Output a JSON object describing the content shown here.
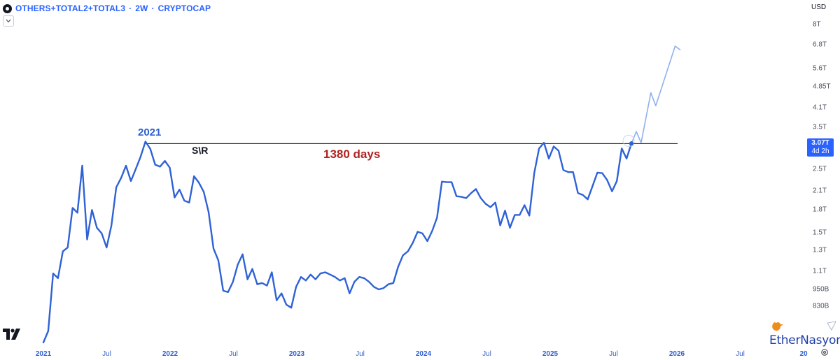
{
  "header": {
    "symbol": "OTHERS+TOTAL2+TOTAL3",
    "separator": "·",
    "interval": "2W",
    "source": "CRYPTOCAP"
  },
  "currency": "USD",
  "price_badge": {
    "price": "3.07T",
    "countdown": "4d 2h"
  },
  "annotations": {
    "peak_label": "2021",
    "sr_label": "S\\R",
    "duration_label": "1380 days"
  },
  "watermark": {
    "text": "EtherNasyonaL"
  },
  "icons": {
    "header": "logo-dot-icon",
    "collapse": "chevron-down-icon",
    "settings": "gear-icon",
    "brand": "tradingview-logo-icon",
    "watermark": "bird-icon"
  },
  "colors": {
    "line": "#2f62d6",
    "projection": "#8fb0ee",
    "sr_line": "#131722",
    "badge": "#2962ff",
    "duration": "#b22222"
  },
  "chart_data": {
    "type": "line",
    "y_scale": "log",
    "ylim": [
      "780B",
      "8.6T"
    ],
    "x_ticks": [
      "2021",
      "Jul",
      "2022",
      "Jul",
      "2023",
      "Jul",
      "2024",
      "Jul",
      "2025",
      "Jul",
      "2026",
      "Jul",
      "20"
    ],
    "y_ticks": [
      "8T",
      "6.8T",
      "5.6T",
      "4.85T",
      "4.1T",
      "3.5T",
      "3.07T",
      "2.5T",
      "2.1T",
      "1.8T",
      "1.5T",
      "1.3T",
      "1.1T",
      "950B",
      "830B"
    ],
    "y_tick_values": [
      8000,
      6800,
      5600,
      4850,
      4100,
      3500,
      3070,
      2500,
      2100,
      1800,
      1500,
      1300,
      1100,
      950,
      830
    ],
    "series": [
      {
        "values": [
          [
            "2021-01-01",
            620
          ],
          [
            "2021-01-15",
            680
          ],
          [
            "2021-01-29",
            1080
          ],
          [
            "2021-02-12",
            1040
          ],
          [
            "2021-02-26",
            1290
          ],
          [
            "2021-03-12",
            1330
          ],
          [
            "2021-03-26",
            1830
          ],
          [
            "2021-04-09",
            1760
          ],
          [
            "2021-04-23",
            2570
          ],
          [
            "2021-05-07",
            1420
          ],
          [
            "2021-05-21",
            1800
          ],
          [
            "2021-06-04",
            1560
          ],
          [
            "2021-06-18",
            1490
          ],
          [
            "2021-07-02",
            1330
          ],
          [
            "2021-07-16",
            1590
          ],
          [
            "2021-07-30",
            2160
          ],
          [
            "2021-08-13",
            2330
          ],
          [
            "2021-08-27",
            2570
          ],
          [
            "2021-09-10",
            2270
          ],
          [
            "2021-09-24",
            2500
          ],
          [
            "2021-10-08",
            2760
          ],
          [
            "2021-10-22",
            3120
          ],
          [
            "2021-11-05",
            2940
          ],
          [
            "2021-11-19",
            2590
          ],
          [
            "2021-12-03",
            2550
          ],
          [
            "2021-12-17",
            2670
          ],
          [
            "2021-12-31",
            2530
          ],
          [
            "2022-01-14",
            1990
          ],
          [
            "2022-01-28",
            2120
          ],
          [
            "2022-02-11",
            1940
          ],
          [
            "2022-02-25",
            1910
          ],
          [
            "2022-03-11",
            2360
          ],
          [
            "2022-03-25",
            2240
          ],
          [
            "2022-04-08",
            2080
          ],
          [
            "2022-04-22",
            1770
          ],
          [
            "2022-05-06",
            1320
          ],
          [
            "2022-05-20",
            1200
          ],
          [
            "2022-06-03",
            940
          ],
          [
            "2022-06-17",
            930
          ],
          [
            "2022-07-01",
            1010
          ],
          [
            "2022-07-15",
            1160
          ],
          [
            "2022-07-29",
            1260
          ],
          [
            "2022-08-12",
            1030
          ],
          [
            "2022-08-26",
            1120
          ],
          [
            "2022-09-09",
            990
          ],
          [
            "2022-09-23",
            1000
          ],
          [
            "2022-10-07",
            980
          ],
          [
            "2022-10-21",
            1090
          ],
          [
            "2022-11-04",
            870
          ],
          [
            "2022-11-18",
            920
          ],
          [
            "2022-12-02",
            840
          ],
          [
            "2022-12-16",
            820
          ],
          [
            "2022-12-30",
            970
          ],
          [
            "2023-01-13",
            1050
          ],
          [
            "2023-01-27",
            1020
          ],
          [
            "2023-02-10",
            1070
          ],
          [
            "2023-02-24",
            1030
          ],
          [
            "2023-03-10",
            1080
          ],
          [
            "2023-03-24",
            1090
          ],
          [
            "2023-04-07",
            1070
          ],
          [
            "2023-04-21",
            1050
          ],
          [
            "2023-05-05",
            1020
          ],
          [
            "2023-05-19",
            1040
          ],
          [
            "2023-06-02",
            920
          ],
          [
            "2023-06-16",
            1010
          ],
          [
            "2023-06-30",
            1050
          ],
          [
            "2023-07-14",
            1040
          ],
          [
            "2023-07-28",
            1010
          ],
          [
            "2023-08-11",
            970
          ],
          [
            "2023-08-25",
            950
          ],
          [
            "2023-09-08",
            960
          ],
          [
            "2023-09-22",
            990
          ],
          [
            "2023-10-06",
            1000
          ],
          [
            "2023-10-20",
            1140
          ],
          [
            "2023-11-03",
            1250
          ],
          [
            "2023-11-17",
            1290
          ],
          [
            "2023-12-01",
            1380
          ],
          [
            "2023-12-15",
            1510
          ],
          [
            "2023-12-29",
            1490
          ],
          [
            "2024-01-12",
            1400
          ],
          [
            "2024-01-26",
            1520
          ],
          [
            "2024-02-09",
            1690
          ],
          [
            "2024-02-23",
            2260
          ],
          [
            "2024-03-08",
            2250
          ],
          [
            "2024-03-22",
            2250
          ],
          [
            "2024-04-05",
            2010
          ],
          [
            "2024-04-19",
            2000
          ],
          [
            "2024-05-03",
            1980
          ],
          [
            "2024-05-17",
            2060
          ],
          [
            "2024-05-31",
            2130
          ],
          [
            "2024-06-14",
            1980
          ],
          [
            "2024-06-28",
            1890
          ],
          [
            "2024-07-12",
            1840
          ],
          [
            "2024-07-26",
            1910
          ],
          [
            "2024-08-09",
            1590
          ],
          [
            "2024-08-23",
            1790
          ],
          [
            "2024-09-06",
            1560
          ],
          [
            "2024-09-20",
            1730
          ],
          [
            "2024-10-04",
            1730
          ],
          [
            "2024-10-18",
            1870
          ],
          [
            "2024-11-01",
            1720
          ],
          [
            "2024-11-15",
            2420
          ],
          [
            "2024-11-29",
            2950
          ],
          [
            "2024-12-13",
            3090
          ],
          [
            "2024-12-27",
            2720
          ],
          [
            "2025-01-10",
            3000
          ],
          [
            "2025-01-24",
            2900
          ],
          [
            "2025-02-07",
            2480
          ],
          [
            "2025-02-21",
            2440
          ],
          [
            "2025-03-07",
            2440
          ],
          [
            "2025-03-21",
            2060
          ],
          [
            "2025-04-04",
            2030
          ],
          [
            "2025-04-18",
            1960
          ],
          [
            "2025-05-02",
            2180
          ],
          [
            "2025-05-16",
            2430
          ],
          [
            "2025-05-30",
            2420
          ],
          [
            "2025-06-13",
            2290
          ],
          [
            "2025-06-27",
            2090
          ],
          [
            "2025-07-11",
            2270
          ],
          [
            "2025-07-25",
            2950
          ],
          [
            "2025-08-08",
            2720
          ],
          [
            "2025-08-22",
            3070
          ]
        ]
      },
      {
        "projection": true,
        "values": [
          [
            "2025-08-22",
            3070
          ],
          [
            "2025-09-05",
            3380
          ],
          [
            "2025-09-19",
            3090
          ],
          [
            "2025-10-17",
            4620
          ],
          [
            "2025-10-31",
            4160
          ],
          [
            "2025-12-26",
            6720
          ],
          [
            "2026-01-09",
            6530
          ]
        ]
      }
    ],
    "horizontal_line": {
      "value": 3070,
      "from": "2021-10-22",
      "to": "2026-01-02"
    },
    "price_point": {
      "x": "2025-08-22",
      "value": 3070
    }
  }
}
